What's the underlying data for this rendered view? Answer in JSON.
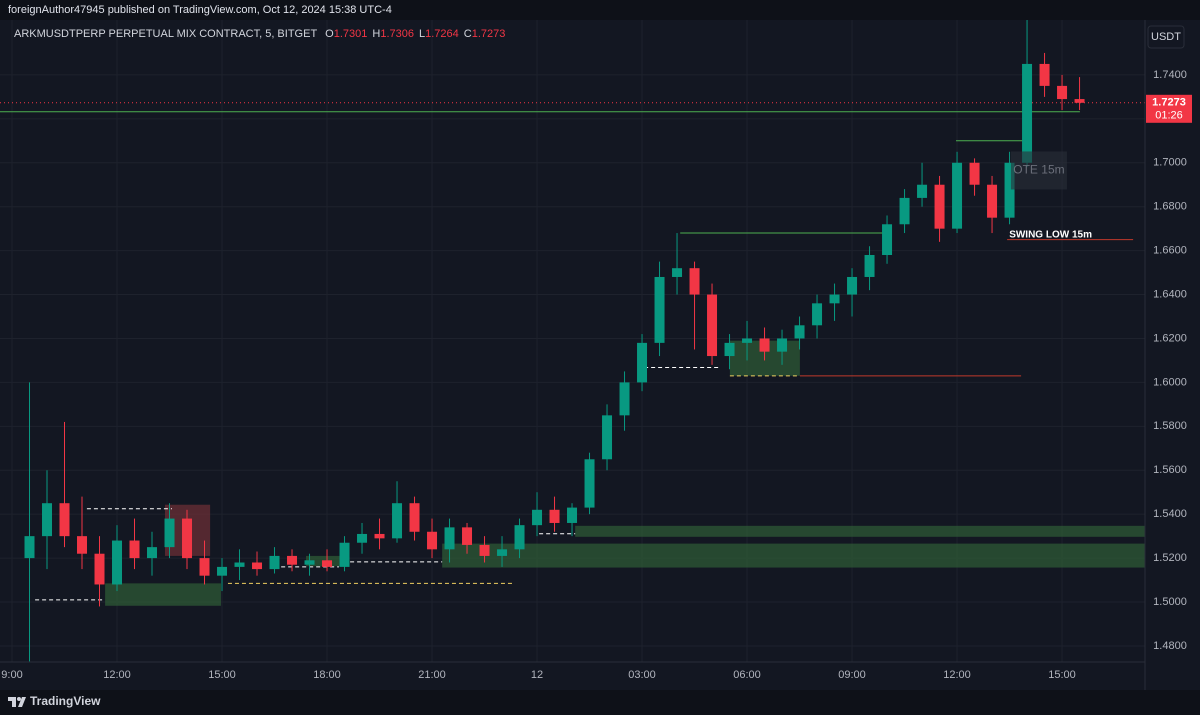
{
  "chart_data": {
    "type": "candlestick",
    "source": "foreignAuthor47945 published on TradingView.com, Oct 12, 2024 15:38 UTC-4",
    "symbol": "ARKMUSDTPERP PERPETUAL MIX CONTRACT, 5, BITGET",
    "ohlc_legend": [
      {
        "label": "O",
        "value": 1.7301
      },
      {
        "label": "H",
        "value": 1.7306
      },
      {
        "label": "L",
        "value": 1.7264
      },
      {
        "label": "C",
        "value": 1.7273
      }
    ],
    "currency": "USDT",
    "last_price": 1.7273,
    "countdown": "01:26",
    "brand": "TradingView",
    "up_color": "#089981",
    "down_color": "#f23645",
    "grid": true,
    "xlim": [
      -0.343,
      32.37
    ],
    "ylim": [
      1.4727,
      1.765
    ],
    "xticks": [
      {
        "value": 0,
        "label": "9:00"
      },
      {
        "value": 3,
        "label": "12:00"
      },
      {
        "value": 6,
        "label": "15:00"
      },
      {
        "value": 9,
        "label": "18:00"
      },
      {
        "value": 12,
        "label": "21:00"
      },
      {
        "value": 15,
        "label": "12"
      },
      {
        "value": 18,
        "label": "03:00"
      },
      {
        "value": 21,
        "label": "06:00"
      },
      {
        "value": 24,
        "label": "09:00"
      },
      {
        "value": 27,
        "label": "12:00"
      },
      {
        "value": 30,
        "label": "15:00"
      }
    ],
    "yticks": [
      {
        "value": 1.48,
        "label": "1.4800"
      },
      {
        "value": 1.5,
        "label": "1.5000"
      },
      {
        "value": 1.52,
        "label": "1.5200"
      },
      {
        "value": 1.54,
        "label": "1.5400"
      },
      {
        "value": 1.56,
        "label": "1.5600"
      },
      {
        "value": 1.58,
        "label": "1.5800"
      },
      {
        "value": 1.6,
        "label": "1.6000"
      },
      {
        "value": 1.62,
        "label": "1.6200"
      },
      {
        "value": 1.64,
        "label": "1.6400"
      },
      {
        "value": 1.66,
        "label": "1.6600"
      },
      {
        "value": 1.68,
        "label": "1.6800"
      },
      {
        "value": 1.7,
        "label": "1.7000"
      },
      {
        "value": 1.72,
        "label": "1.7200"
      },
      {
        "value": 1.74,
        "label": "1.7400"
      }
    ],
    "x": [
      0.5,
      1,
      1.5,
      2,
      2.5,
      3,
      3.5,
      4,
      4.5,
      5,
      5.5,
      6,
      6.5,
      7,
      7.5,
      8,
      8.5,
      9,
      9.5,
      10,
      10.5,
      11,
      11.5,
      12,
      12.5,
      13,
      13.5,
      14,
      14.5,
      15,
      15.5,
      16,
      16.5,
      17,
      17.5,
      18,
      18.5,
      19,
      19.5,
      20,
      20.5,
      21,
      21.5,
      22,
      22.5,
      23,
      23.5,
      24,
      24.5,
      25,
      25.5,
      26,
      26.5,
      27,
      27.5,
      28,
      28.5,
      29,
      29.5,
      30,
      30.5
    ],
    "open": [
      1.52,
      1.53,
      1.545,
      1.53,
      1.522,
      1.508,
      1.528,
      1.52,
      1.525,
      1.538,
      1.52,
      1.512,
      1.516,
      1.518,
      1.515,
      1.521,
      1.517,
      1.519,
      1.516,
      1.527,
      1.531,
      1.529,
      1.545,
      1.532,
      1.524,
      1.534,
      1.526,
      1.521,
      1.524,
      1.535,
      1.542,
      1.536,
      1.543,
      1.565,
      1.585,
      1.6,
      1.618,
      1.648,
      1.652,
      1.64,
      1.612,
      1.618,
      1.62,
      1.614,
      1.62,
      1.626,
      1.636,
      1.64,
      1.648,
      1.658,
      1.672,
      1.684,
      1.69,
      1.67,
      1.7,
      1.69,
      1.675,
      1.7,
      1.745,
      1.735,
      1.729
    ],
    "high": [
      1.6,
      1.56,
      1.582,
      1.548,
      1.53,
      1.535,
      1.538,
      1.532,
      1.545,
      1.542,
      1.528,
      1.52,
      1.524,
      1.523,
      1.525,
      1.524,
      1.522,
      1.524,
      1.53,
      1.536,
      1.538,
      1.555,
      1.548,
      1.538,
      1.538,
      1.536,
      1.53,
      1.53,
      1.538,
      1.55,
      1.548,
      1.545,
      1.568,
      1.59,
      1.605,
      1.622,
      1.655,
      1.668,
      1.655,
      1.645,
      1.622,
      1.628,
      1.625,
      1.624,
      1.63,
      1.64,
      1.645,
      1.652,
      1.662,
      1.676,
      1.688,
      1.7,
      1.694,
      1.705,
      1.702,
      1.694,
      1.705,
      1.765,
      1.75,
      1.74,
      1.739
    ],
    "low": [
      1.473,
      1.515,
      1.525,
      1.515,
      1.498,
      1.505,
      1.515,
      1.512,
      1.52,
      1.515,
      1.508,
      1.505,
      1.51,
      1.512,
      1.513,
      1.514,
      1.512,
      1.514,
      1.514,
      1.522,
      1.524,
      1.527,
      1.528,
      1.52,
      1.518,
      1.522,
      1.518,
      1.516,
      1.52,
      1.53,
      1.532,
      1.53,
      1.54,
      1.56,
      1.578,
      1.596,
      1.612,
      1.64,
      1.615,
      1.608,
      1.606,
      1.61,
      1.61,
      1.608,
      1.615,
      1.62,
      1.628,
      1.63,
      1.642,
      1.654,
      1.668,
      1.68,
      1.664,
      1.668,
      1.685,
      1.668,
      1.672,
      1.698,
      1.73,
      1.724,
      1.724
    ],
    "close": [
      1.53,
      1.545,
      1.53,
      1.522,
      1.508,
      1.528,
      1.52,
      1.525,
      1.538,
      1.52,
      1.512,
      1.516,
      1.518,
      1.515,
      1.521,
      1.517,
      1.519,
      1.516,
      1.527,
      1.531,
      1.529,
      1.545,
      1.532,
      1.524,
      1.534,
      1.526,
      1.521,
      1.524,
      1.535,
      1.542,
      1.536,
      1.543,
      1.565,
      1.585,
      1.6,
      1.618,
      1.648,
      1.652,
      1.64,
      1.612,
      1.618,
      1.62,
      1.614,
      1.62,
      1.626,
      1.636,
      1.64,
      1.648,
      1.658,
      1.672,
      1.684,
      1.69,
      1.67,
      1.7,
      1.69,
      1.675,
      1.7,
      1.745,
      1.735,
      1.729,
      1.7273
    ],
    "zones": [
      {
        "x": [
          2.66,
          5.97
        ],
        "y": [
          1.4983,
          1.5085
        ],
        "color": "#2e5a36"
      },
      {
        "x": [
          4.37,
          5.66
        ],
        "y": [
          1.521,
          1.5443
        ],
        "color": "#6b2f36"
      },
      {
        "x": [
          8.4,
          9.63
        ],
        "y": [
          1.5163,
          1.521
        ],
        "color": "#2e5a36"
      },
      {
        "x": [
          12.29,
          32.37
        ],
        "y": [
          1.5157,
          1.5266
        ],
        "color": "#2e5a36"
      },
      {
        "x": [
          16.09,
          32.37
        ],
        "y": [
          1.5297,
          1.5347
        ],
        "color": "#2e5a36"
      },
      {
        "x": [
          20.51,
          22.51
        ],
        "y": [
          1.603,
          1.619
        ],
        "color": "#2e5a36"
      }
    ],
    "levels": [
      {
        "x": [
          -0.343,
          30.51
        ],
        "y": 1.7232,
        "color": "#4caf50",
        "dash": "none"
      },
      {
        "x": [
          -0.343,
          32.37
        ],
        "y": 1.7273,
        "color": "#f23645",
        "dash": "1 3"
      },
      {
        "x": [
          0.66,
          2.66
        ],
        "y": 1.501,
        "color": "#ffffff",
        "dash": "4 3"
      },
      {
        "x": [
          2.14,
          4.57
        ],
        "y": 1.5425,
        "color": "#ffffff",
        "dash": "4 3"
      },
      {
        "x": [
          7.49,
          9.34
        ],
        "y": 1.516,
        "color": "#ffffff",
        "dash": "4 3"
      },
      {
        "x": [
          6.17,
          14.37
        ],
        "y": 1.5085,
        "color": "#f0d060",
        "dash": "4 3"
      },
      {
        "x": [
          9.66,
          12.29
        ],
        "y": 1.5183,
        "color": "#ffffff",
        "dash": "4 3"
      },
      {
        "x": [
          15.06,
          16.09
        ],
        "y": 1.5311,
        "color": "#ffffff",
        "dash": "4 3"
      },
      {
        "x": [
          18.06,
          20.23
        ],
        "y": 1.6068,
        "color": "#ffffff",
        "dash": "4 3"
      },
      {
        "x": [
          20.51,
          22.51
        ],
        "y": 1.603,
        "color": "#f0d060",
        "dash": "4 3"
      },
      {
        "x": [
          22.51,
          28.83
        ],
        "y": 1.603,
        "color": "#c0392b",
        "dash": "none"
      },
      {
        "x": [
          19.09,
          25.03
        ],
        "y": 1.668,
        "color": "#4caf50",
        "dash": "none"
      },
      {
        "x": [
          26.97,
          28.94
        ],
        "y": 1.71,
        "color": "#4caf50",
        "dash": "none"
      },
      {
        "x": [
          28.43,
          32.03
        ],
        "y": 1.665,
        "color": "#c0392b",
        "dash": "none"
      }
    ],
    "annotations": [
      {
        "text": "SWING LOW 15m",
        "x": 28.49,
        "y": 1.6672,
        "boxed": false
      },
      {
        "text": "OTE 15m",
        "x": 29.34,
        "y": 1.6965,
        "boxed": true
      }
    ]
  }
}
